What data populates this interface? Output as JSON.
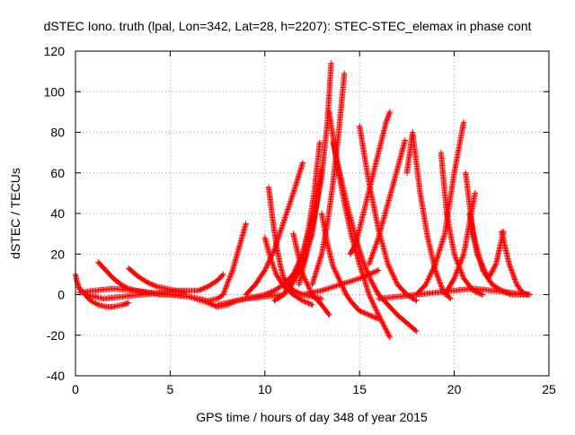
{
  "chart_data": {
    "type": "scatter",
    "title": "dSTEC Iono. truth (lpal, Lon=342, Lat=28, h=2207): STEC-STEC_elemax in phase cont",
    "xlabel": "GPS time / hours of day 348 of year 2015",
    "ylabel": "dSTEC  / TECUs",
    "xlim": [
      0,
      25
    ],
    "ylim": [
      -40,
      120
    ],
    "xticks": [
      0,
      5,
      10,
      15,
      20,
      25
    ],
    "yticks": [
      -40,
      -20,
      0,
      20,
      40,
      60,
      80,
      100,
      120
    ],
    "grid": true,
    "grid_style": "dotted",
    "marker": "+",
    "colors": {
      "series": "#ff0000",
      "grid": "#a0a0a0",
      "axis": "#000000"
    },
    "series": [
      {
        "x": [
          0.0,
          0.1,
          0.2,
          0.3,
          0.4,
          0.5,
          0.6
        ],
        "y": [
          10,
          6,
          3,
          2,
          1,
          0.5,
          0
        ]
      },
      {
        "x": [
          0.5,
          0.8,
          1.2,
          1.6,
          2.0,
          2.5,
          2.8
        ],
        "y": [
          0,
          -3,
          -5,
          -6,
          -6,
          -5,
          -4
        ]
      },
      {
        "x": [
          1.2,
          1.6,
          2.0,
          2.4,
          2.8,
          3.2,
          3.8,
          4.5,
          5.0,
          5.5
        ],
        "y": [
          16,
          12,
          8,
          5,
          3,
          2,
          1,
          0,
          0,
          0
        ]
      },
      {
        "x": [
          2.8,
          3.3,
          3.8,
          4.3,
          4.8,
          5.3,
          5.8
        ],
        "y": [
          13,
          9,
          6,
          4,
          3,
          2,
          1
        ]
      },
      {
        "x": [
          0.2,
          1.0,
          2.0,
          3.0,
          4.0,
          5.0,
          6.0,
          7.0,
          7.5,
          7.8,
          8.0,
          8.3,
          8.6,
          9.0
        ],
        "y": [
          1,
          2,
          3,
          2,
          1,
          0,
          -1,
          -3,
          -2,
          0,
          5,
          12,
          22,
          35
        ]
      },
      {
        "x": [
          0.5,
          1.5,
          2.5,
          3.5,
          4.5,
          5.5,
          6.5,
          7.0,
          7.5,
          7.8
        ],
        "y": [
          0,
          -2,
          -1,
          0,
          1,
          2,
          2,
          4,
          7,
          10
        ]
      },
      {
        "x": [
          5.0,
          6.0,
          7.0,
          7.5,
          8.0,
          8.5,
          9.0,
          10.0,
          11.0
        ],
        "y": [
          0,
          -1,
          -4,
          -6,
          -5,
          -3,
          -2,
          -1,
          0
        ]
      },
      {
        "x": [
          7.5,
          8.5,
          9.5,
          10.0,
          10.5,
          11.0,
          11.5,
          12.0,
          12.5
        ],
        "y": [
          -5,
          -3,
          -1,
          0,
          2,
          5,
          10,
          20,
          38
        ]
      },
      {
        "x": [
          9.0,
          9.5,
          10.0,
          10.5,
          11.0,
          11.5,
          12.0
        ],
        "y": [
          0,
          5,
          12,
          22,
          36,
          50,
          65
        ]
      },
      {
        "x": [
          10.0,
          10.3,
          10.6,
          11.0,
          11.5,
          12.0,
          12.5
        ],
        "y": [
          28,
          18,
          10,
          4,
          0,
          -3,
          -5
        ]
      },
      {
        "x": [
          10.2,
          10.4,
          10.6,
          10.8,
          11.0,
          11.5,
          12.0,
          13.0
        ],
        "y": [
          53,
          38,
          25,
          15,
          8,
          2,
          0,
          -2
        ]
      },
      {
        "x": [
          10.5,
          11.0,
          11.5,
          12.0,
          12.5,
          13.0
        ],
        "y": [
          -3,
          0,
          6,
          15,
          30,
          62
        ]
      },
      {
        "x": [
          11.0,
          11.5,
          12.0,
          12.3,
          12.6,
          12.9
        ],
        "y": [
          0,
          8,
          20,
          32,
          50,
          75
        ]
      },
      {
        "x": [
          11.5,
          12.0,
          12.5,
          13.0,
          13.4
        ],
        "y": [
          30,
          10,
          0,
          -5,
          -10
        ]
      },
      {
        "x": [
          11.8,
          12.2,
          12.6,
          13.0,
          13.3,
          13.5
        ],
        "y": [
          5,
          20,
          38,
          58,
          85,
          114
        ]
      },
      {
        "x": [
          13.0,
          13.3,
          13.6,
          14.0,
          14.3,
          14.6,
          15.0,
          15.5,
          16.0
        ],
        "y": [
          40,
          25,
          14,
          6,
          0,
          -4,
          -8,
          -10,
          -12
        ]
      },
      {
        "x": [
          12.5,
          13.0,
          13.3,
          13.6,
          13.9,
          14.2
        ],
        "y": [
          5,
          20,
          35,
          55,
          80,
          109
        ]
      },
      {
        "x": [
          13.4,
          13.8,
          14.2,
          14.6,
          15.0,
          15.5,
          16.0,
          16.6
        ],
        "y": [
          90,
          65,
          45,
          28,
          15,
          0,
          -10,
          -21
        ]
      },
      {
        "x": [
          13.6,
          14.0,
          14.4,
          14.8,
          15.2,
          15.6,
          16.0,
          16.5,
          17.0,
          17.5,
          18.0
        ],
        "y": [
          75,
          58,
          42,
          28,
          16,
          7,
          0,
          -5,
          -10,
          -14,
          -18
        ]
      },
      {
        "x": [
          14.5,
          14.8,
          15.2,
          15.6,
          16.0,
          16.4,
          16.6
        ],
        "y": [
          20,
          25,
          40,
          55,
          70,
          85,
          90
        ]
      },
      {
        "x": [
          15.0,
          15.5,
          16.0,
          16.5,
          17.0,
          17.5,
          18.0
        ],
        "y": [
          83,
          55,
          32,
          15,
          5,
          0,
          -3
        ]
      },
      {
        "x": [
          15.5,
          16.0,
          16.5,
          17.0,
          17.4
        ],
        "y": [
          15,
          28,
          45,
          62,
          76
        ]
      },
      {
        "x": [
          17.5,
          17.8,
          18.2,
          18.6,
          19.0,
          19.4,
          19.8
        ],
        "y": [
          60,
          80,
          50,
          28,
          12,
          2,
          -2
        ]
      },
      {
        "x": [
          18.0,
          18.5,
          19.0,
          19.5,
          20.0,
          20.5
        ],
        "y": [
          0,
          5,
          15,
          30,
          60,
          85
        ]
      },
      {
        "x": [
          19.3,
          19.6,
          20.0,
          20.5,
          21.0,
          21.5
        ],
        "y": [
          70,
          40,
          20,
          8,
          2,
          0
        ]
      },
      {
        "x": [
          19.5,
          20.0,
          20.5,
          20.8,
          21.1
        ],
        "y": [
          0,
          8,
          20,
          35,
          50
        ]
      },
      {
        "x": [
          20.6,
          21.0,
          21.5,
          22.0,
          22.5,
          23.0,
          23.8
        ],
        "y": [
          60,
          30,
          12,
          5,
          2,
          0,
          0
        ]
      },
      {
        "x": [
          20.8,
          21.2,
          21.8,
          22.2,
          22.6
        ],
        "y": [
          40,
          20,
          8,
          15,
          31
        ]
      },
      {
        "x": [
          22.5,
          22.9,
          23.3,
          23.6,
          23.9
        ],
        "y": [
          31,
          15,
          5,
          1,
          0
        ]
      },
      {
        "x": [
          16.0,
          17.0,
          18.0,
          19.0,
          20.0,
          21.0,
          22.0,
          23.0,
          24.0
        ],
        "y": [
          -2,
          -1,
          0,
          1,
          2,
          3,
          2,
          1,
          0
        ]
      },
      {
        "x": [
          12.0,
          13.0,
          14.0,
          15.0,
          16.0
        ],
        "y": [
          0,
          2,
          5,
          8,
          12
        ]
      }
    ]
  }
}
